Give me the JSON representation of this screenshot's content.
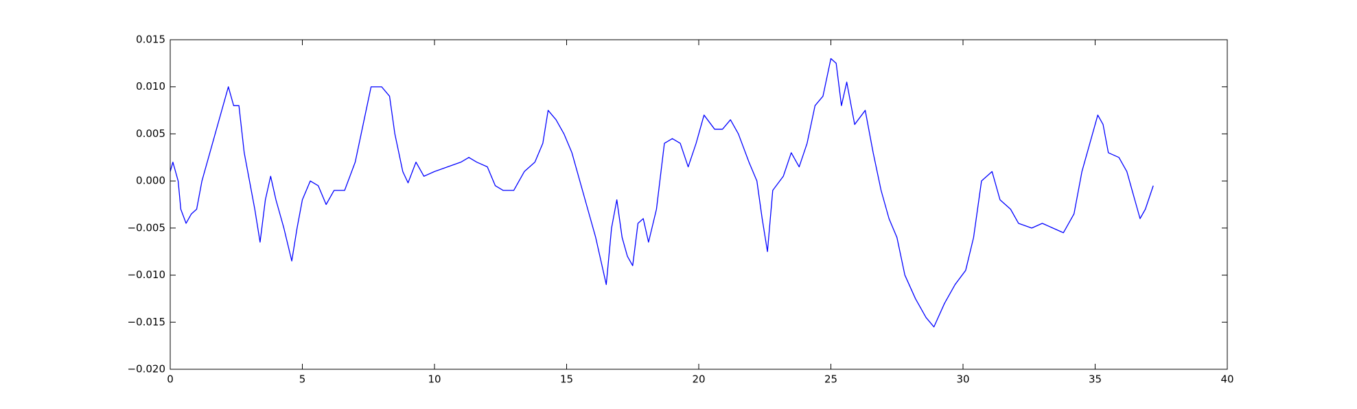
{
  "chart_data": {
    "type": "line",
    "xlim": [
      0,
      40
    ],
    "xticks": [
      0,
      5,
      10,
      15,
      20,
      25,
      30,
      35,
      40
    ],
    "ylim": [
      -0.02,
      0.015
    ],
    "yticks": [
      {
        "value": -0.02,
        "label": "−0.020"
      },
      {
        "value": -0.015,
        "label": "−0.015"
      },
      {
        "value": -0.01,
        "label": "−0.010"
      },
      {
        "value": -0.005,
        "label": "−0.005"
      },
      {
        "value": 0,
        "label": "0.000"
      },
      {
        "value": 0.005,
        "label": "0.005"
      },
      {
        "value": 0.01,
        "label": "0.010"
      },
      {
        "value": 0.015,
        "label": "0.015"
      }
    ],
    "grid": false,
    "x": [
      0,
      0.1,
      0.3,
      0.4,
      0.6,
      0.8,
      1.0,
      1.2,
      1.5,
      1.8,
      2.0,
      2.2,
      2.4,
      2.6,
      2.8,
      3.0,
      3.2,
      3.4,
      3.6,
      3.8,
      4.0,
      4.3,
      4.6,
      4.8,
      5.0,
      5.3,
      5.6,
      5.9,
      6.2,
      6.6,
      7.0,
      7.3,
      7.6,
      8.0,
      8.3,
      8.5,
      8.8,
      9.0,
      9.3,
      9.6,
      10.0,
      10.5,
      11.0,
      11.3,
      11.6,
      12.0,
      12.3,
      12.6,
      13.0,
      13.4,
      13.8,
      14.1,
      14.3,
      14.6,
      14.9,
      15.2,
      15.5,
      15.8,
      16.1,
      16.5,
      16.7,
      16.9,
      17.1,
      17.3,
      17.5,
      17.7,
      17.9,
      18.1,
      18.4,
      18.7,
      19.0,
      19.3,
      19.6,
      19.9,
      20.2,
      20.6,
      20.9,
      21.2,
      21.5,
      21.9,
      22.2,
      22.4,
      22.6,
      22.8,
      23.2,
      23.5,
      23.8,
      24.1,
      24.4,
      24.7,
      25.0,
      25.2,
      25.4,
      25.6,
      25.9,
      26.3,
      26.6,
      26.9,
      27.2,
      27.5,
      27.8,
      28.2,
      28.6,
      28.9,
      29.3,
      29.7,
      30.1,
      30.4,
      30.7,
      31.1,
      31.4,
      31.8,
      32.1,
      32.6,
      33.0,
      33.4,
      33.8,
      34.2,
      34.5,
      34.8,
      35.1,
      35.3,
      35.5,
      35.9,
      36.2,
      36.5,
      36.7,
      36.9,
      37.2
    ],
    "series": [
      {
        "color": "#0000ff",
        "values": [
          0.001,
          0.002,
          0.0,
          -0.003,
          -0.0045,
          -0.0035,
          -0.003,
          0.0,
          0.003,
          0.006,
          0.008,
          0.01,
          0.008,
          0.008,
          0.003,
          0.0,
          -0.003,
          -0.0065,
          -0.002,
          0.0005,
          -0.002,
          -0.005,
          -0.0085,
          -0.005,
          -0.002,
          0.0,
          -0.0005,
          -0.0025,
          -0.001,
          -0.001,
          0.002,
          0.006,
          0.01,
          0.01,
          0.009,
          0.005,
          0.001,
          -0.0002,
          0.002,
          0.0005,
          0.001,
          0.0015,
          0.002,
          0.0025,
          0.002,
          0.0015,
          -0.0005,
          -0.001,
          -0.001,
          0.001,
          0.002,
          0.004,
          0.0075,
          0.0065,
          0.005,
          0.003,
          0.0,
          -0.003,
          -0.006,
          -0.011,
          -0.005,
          -0.002,
          -0.006,
          -0.008,
          -0.009,
          -0.0045,
          -0.004,
          -0.0065,
          -0.003,
          0.004,
          0.0045,
          0.004,
          0.0015,
          0.004,
          0.007,
          0.0055,
          0.0055,
          0.0065,
          0.005,
          0.002,
          0.0,
          -0.004,
          -0.0075,
          -0.001,
          0.0005,
          0.003,
          0.0015,
          0.004,
          0.008,
          0.009,
          0.013,
          0.0125,
          0.008,
          0.0105,
          0.006,
          0.0075,
          0.003,
          -0.001,
          -0.004,
          -0.006,
          -0.01,
          -0.0125,
          -0.0145,
          -0.0155,
          -0.013,
          -0.011,
          -0.0095,
          -0.006,
          0.0,
          0.001,
          -0.002,
          -0.003,
          -0.0045,
          -0.005,
          -0.0045,
          -0.005,
          -0.0055,
          -0.0035,
          0.001,
          0.004,
          0.007,
          0.006,
          0.003,
          0.0025,
          0.001,
          -0.002,
          -0.004,
          -0.003,
          -0.0005
        ]
      }
    ]
  }
}
